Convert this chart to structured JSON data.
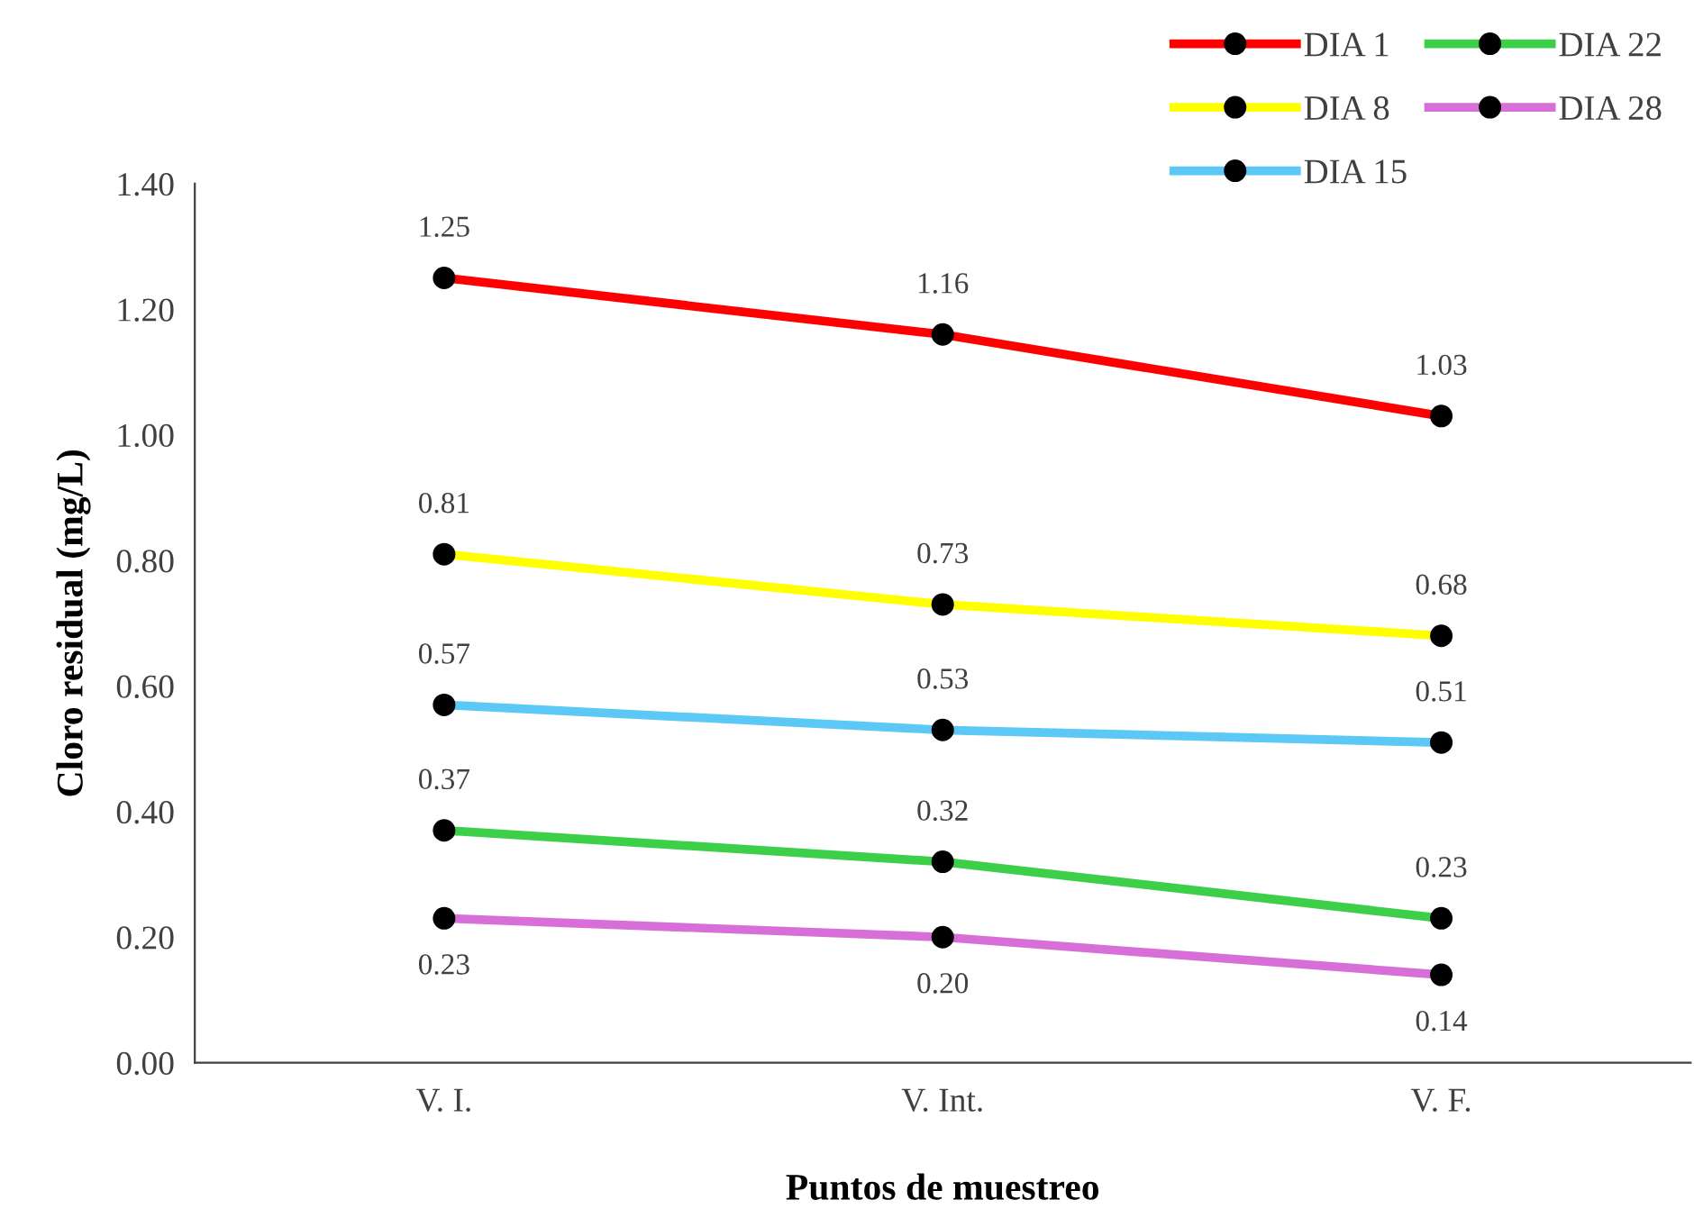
{
  "chart_data": {
    "type": "line",
    "xlabel": "Puntos de muestreo",
    "ylabel": "Cloro residual (mg/L)",
    "categories": [
      "V. I.",
      "V. Int.",
      "V. F."
    ],
    "series": [
      {
        "name": "DIA 1",
        "color": "#ff0000",
        "values": [
          1.25,
          1.16,
          1.03
        ],
        "value_labels": [
          "1.25",
          "1.16",
          "1.03"
        ]
      },
      {
        "name": "DIA 8",
        "color": "#ffff00",
        "values": [
          0.81,
          0.73,
          0.68
        ],
        "value_labels": [
          "0.81",
          "0.73",
          "0.68"
        ]
      },
      {
        "name": "DIA 15",
        "color": "#5bc8f5",
        "values": [
          0.57,
          0.53,
          0.51
        ],
        "value_labels": [
          "0.57",
          "0.53",
          "0.51"
        ]
      },
      {
        "name": "DIA 22",
        "color": "#3ecf4a",
        "values": [
          0.37,
          0.32,
          0.23
        ],
        "value_labels": [
          "0.37",
          "0.32",
          "0.23"
        ]
      },
      {
        "name": "DIA 28",
        "color": "#d86fd8",
        "values": [
          0.23,
          0.2,
          0.14
        ],
        "value_labels": [
          "0.23",
          "0.20",
          "0.14"
        ]
      }
    ],
    "ylim": [
      0,
      1.4
    ],
    "yticks": [
      {
        "value": 0,
        "label": "0.00"
      },
      {
        "value": 0.2,
        "label": "0.20"
      },
      {
        "value": 0.4,
        "label": "0.40"
      },
      {
        "value": 0.6,
        "label": "0.60"
      },
      {
        "value": 0.8,
        "label": "0.80"
      },
      {
        "value": 1.0,
        "label": "1.00"
      },
      {
        "value": 1.2,
        "label": "1.20"
      },
      {
        "value": 1.4,
        "label": "1.40"
      }
    ],
    "grid": false,
    "legend": "top right",
    "marker": "circle",
    "line_style": "solid"
  }
}
